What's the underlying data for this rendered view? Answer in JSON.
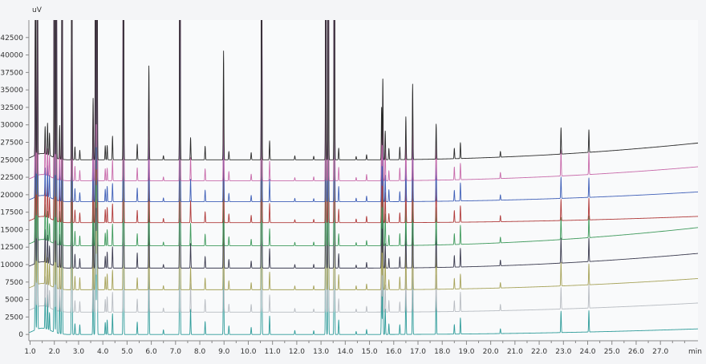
{
  "chart_data": {
    "type": "line",
    "title": "",
    "xlabel": "",
    "ylabel": "",
    "x_unit": "min",
    "y_unit": "uV",
    "xlim": [
      0.95,
      28.55
    ],
    "ylim": [
      -900,
      45000
    ],
    "x_ticks": [
      "1.0",
      "1.5",
      "2.0",
      "2.5",
      "3.0",
      "3.5",
      "4.0",
      "4.5",
      "5.0",
      "5.5",
      "6.0",
      "6.5",
      "7.0",
      "7.5",
      "8.0",
      "8.5",
      "9.0",
      "9.5",
      "10.0",
      "10.5",
      "11.0",
      "11.5",
      "12.0",
      "12.5",
      "13.0",
      "13.5",
      "14.0",
      "14.5",
      "15.0",
      "15.5",
      "16.0",
      "16.5",
      "17.0",
      "17.5",
      "18.0",
      "18.5",
      "19.0",
      "19.5",
      "20.0",
      "20.5",
      "21.0",
      "21.5",
      "22.0",
      "22.5",
      "23.0",
      "23.5",
      "24.0",
      "24.5",
      "25.0",
      "25.5",
      "26.0",
      "26.5",
      "27.0",
      "27.5",
      "28.0"
    ],
    "x_tick_labels": {
      "1.0": "1.0",
      "2.0": "2.0",
      "3.0": "3.0",
      "4.0": "4.0",
      "5.0": "5.0",
      "6.0": "6.0",
      "7.0": "7.0",
      "8.0": "8.0",
      "9.0": "9.0",
      "10.0": "10.0",
      "11.0": "11.0",
      "12.0": "12.0",
      "13.0": "13.0",
      "14.0": "14.0",
      "15.0": "15.0",
      "16.0": "16.0",
      "17.0": "17.0",
      "18.0": "18.0",
      "19.0": "19.0",
      "20.0": "20.0",
      "21.0": "21.0",
      "22.0": "22.0",
      "23.0": "23.0",
      "24.0": "24.0",
      "25.0": "25.0",
      "26.0": "26.0",
      "27.0": "27.0"
    },
    "y_ticks": [
      "0",
      "2500",
      "5000",
      "7500",
      "10000",
      "12500",
      "15000",
      "17500",
      "20000",
      "22500",
      "25000",
      "27500",
      "30000",
      "32500",
      "35000",
      "37500",
      "40000",
      "42500"
    ],
    "grid": false,
    "legend": "none",
    "series": [
      {
        "color": "#2f9c9a",
        "baseline": 0,
        "drift": 800
      },
      {
        "color": "#b8bcc2",
        "baseline": 3200,
        "drift": 1300
      },
      {
        "color": "#a7a35a",
        "baseline": 6400,
        "drift": 1600
      },
      {
        "color": "#3b3b4f",
        "baseline": 9500,
        "drift": 2100
      },
      {
        "color": "#3f9a5c",
        "baseline": 12700,
        "drift": 2600
      },
      {
        "color": "#b03a3a",
        "baseline": 16000,
        "drift": 900
      },
      {
        "color": "#4060b8",
        "baseline": 19000,
        "drift": 1400
      },
      {
        "color": "#c86aaa",
        "baseline": 22000,
        "drift": 2000
      },
      {
        "color": "#2a2a2a",
        "baseline": 25000,
        "drift": 2400
      }
    ],
    "peaks": [
      {
        "t": 1.22,
        "h": 30500
      },
      {
        "t": 1.3,
        "h": 60000
      },
      {
        "t": 1.62,
        "h": 4500
      },
      {
        "t": 1.72,
        "h": 4500
      },
      {
        "t": 1.8,
        "h": 2800
      },
      {
        "t": 2.0,
        "h": 60000
      },
      {
        "t": 2.08,
        "h": 60000
      },
      {
        "t": 2.22,
        "h": 5500
      },
      {
        "t": 2.32,
        "h": 60000
      },
      {
        "t": 2.72,
        "h": 60000
      },
      {
        "t": 2.85,
        "h": 1800
      },
      {
        "t": 3.05,
        "h": 1500
      },
      {
        "t": 3.6,
        "h": 10000
      },
      {
        "t": 3.7,
        "h": 60000
      },
      {
        "t": 3.76,
        "h": 60000
      },
      {
        "t": 4.1,
        "h": 1800
      },
      {
        "t": 4.18,
        "h": 2000
      },
      {
        "t": 4.4,
        "h": 3000
      },
      {
        "t": 4.85,
        "h": 60000
      },
      {
        "t": 5.42,
        "h": 2000
      },
      {
        "t": 5.9,
        "h": 12600
      },
      {
        "t": 6.5,
        "h": 600
      },
      {
        "t": 7.18,
        "h": 60000
      },
      {
        "t": 7.62,
        "h": 3600
      },
      {
        "t": 8.22,
        "h": 1800
      },
      {
        "t": 8.98,
        "h": 14400
      },
      {
        "t": 9.2,
        "h": 1200
      },
      {
        "t": 10.12,
        "h": 1000
      },
      {
        "t": 10.55,
        "h": 60000
      },
      {
        "t": 10.88,
        "h": 2800
      },
      {
        "t": 11.92,
        "h": 500
      },
      {
        "t": 12.7,
        "h": 500
      },
      {
        "t": 13.2,
        "h": 60000
      },
      {
        "t": 13.3,
        "h": 60000
      },
      {
        "t": 13.55,
        "h": 60000
      },
      {
        "t": 13.73,
        "h": 1900
      },
      {
        "t": 14.45,
        "h": 500
      },
      {
        "t": 14.88,
        "h": 800
      },
      {
        "t": 15.5,
        "h": 8000
      },
      {
        "t": 15.55,
        "h": 11500
      },
      {
        "t": 15.65,
        "h": 4000
      },
      {
        "t": 15.8,
        "h": 1500
      },
      {
        "t": 16.25,
        "h": 1600
      },
      {
        "t": 16.5,
        "h": 6700
      },
      {
        "t": 16.78,
        "h": 11700
      },
      {
        "t": 17.75,
        "h": 5800
      },
      {
        "t": 18.5,
        "h": 1600
      },
      {
        "t": 18.75,
        "h": 2500
      },
      {
        "t": 20.4,
        "h": 800
      },
      {
        "t": 22.9,
        "h": 3300
      },
      {
        "t": 24.05,
        "h": 3000
      }
    ]
  }
}
